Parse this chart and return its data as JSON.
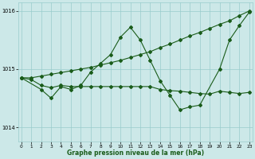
{
  "xlabel": "Graphe pression niveau de la mer (hPa)",
  "bg_color": "#cce8e8",
  "grid_color": "#99cccc",
  "line_color": "#1a5c1a",
  "ylim": [
    1013.75,
    1016.15
  ],
  "xlim": [
    -0.3,
    23.3
  ],
  "yticks": [
    1014,
    1015,
    1016
  ],
  "xticks": [
    0,
    1,
    2,
    3,
    4,
    5,
    6,
    7,
    8,
    9,
    10,
    11,
    12,
    13,
    14,
    15,
    16,
    17,
    18,
    19,
    20,
    21,
    22,
    23
  ],
  "line1_x": [
    0,
    1,
    2,
    3,
    4,
    5,
    6,
    7,
    8,
    9,
    10,
    11,
    12,
    13,
    14,
    15,
    16,
    17,
    18,
    19,
    20,
    21,
    22,
    23
  ],
  "line1_y": [
    1014.85,
    1014.85,
    1014.88,
    1014.91,
    1014.94,
    1014.97,
    1015.0,
    1015.03,
    1015.07,
    1015.11,
    1015.15,
    1015.2,
    1015.25,
    1015.3,
    1015.37,
    1015.43,
    1015.5,
    1015.57,
    1015.63,
    1015.7,
    1015.77,
    1015.83,
    1015.92,
    1016.0
  ],
  "line2_x": [
    0,
    2,
    3,
    4,
    5,
    6,
    7,
    8,
    9,
    10,
    11,
    12,
    13,
    14,
    15,
    16,
    17,
    18,
    20,
    21,
    22,
    23
  ],
  "line2_y": [
    1014.85,
    1014.65,
    1014.5,
    1014.7,
    1014.65,
    1014.72,
    1014.95,
    1015.1,
    1015.25,
    1015.55,
    1015.72,
    1015.5,
    1015.15,
    1014.8,
    1014.55,
    1014.3,
    1014.35,
    1014.38,
    1015.0,
    1015.5,
    1015.75,
    1015.98
  ],
  "line3_x": [
    0,
    1,
    2,
    3,
    4,
    5,
    6,
    7,
    8,
    9,
    10,
    11,
    12,
    13,
    14,
    15,
    16,
    17,
    18,
    19,
    20,
    21,
    22,
    23
  ],
  "line3_y": [
    1014.85,
    1014.82,
    1014.72,
    1014.68,
    1014.72,
    1014.7,
    1014.7,
    1014.7,
    1014.7,
    1014.7,
    1014.7,
    1014.7,
    1014.7,
    1014.7,
    1014.65,
    1014.63,
    1014.62,
    1014.6,
    1014.58,
    1014.57,
    1014.62,
    1014.6,
    1014.58,
    1014.6
  ]
}
